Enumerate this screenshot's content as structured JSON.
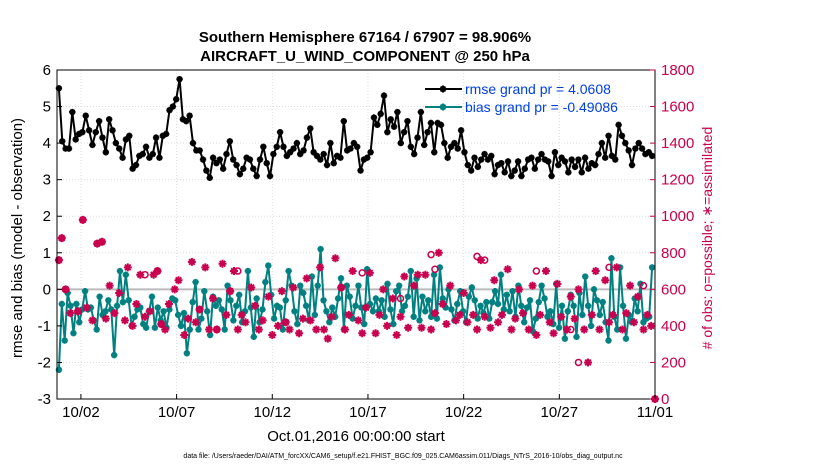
{
  "chart_data": {
    "type": "line",
    "title_line1": "Southern Hemisphere 67164 / 67907 = 98.906%",
    "title_line2": "AIRCRAFT_U_WIND_COMPONENT @ 250 hPa",
    "xlabel": "Oct.01,2016 00:00:00 start",
    "ylabel_left": "rmse and bias (model - observation)",
    "ylabel_right": "# of obs: o=possible; ∗=assimilated",
    "footnote": "data file: /Users/raeder/DAI/ATM_forcXX/CAM6_setup/f.e21.FHIST_BGC.f09_025.CAM6assim.011/Diags_NTrS_2016-10/obs_diag_output.nc",
    "x_ticks": [
      {
        "value": 2,
        "label": "10/02"
      },
      {
        "value": 7,
        "label": "10/07"
      },
      {
        "value": 12,
        "label": "10/12"
      },
      {
        "value": 17,
        "label": "10/17"
      },
      {
        "value": 22,
        "label": "10/22"
      },
      {
        "value": 27,
        "label": "10/27"
      },
      {
        "value": 32,
        "label": "11/01"
      }
    ],
    "xlim": [
      0.75,
      32
    ],
    "ylim_left": [
      -3,
      6
    ],
    "y_ticks_left": [
      "-3",
      "-2",
      "-1",
      "0",
      "1",
      "2",
      "3",
      "4",
      "5",
      "6"
    ],
    "ylim_right": [
      0,
      1800
    ],
    "y_ticks_right": [
      "0",
      "200",
      "400",
      "600",
      "800",
      "1000",
      "1200",
      "1400",
      "1600",
      "1800"
    ],
    "grid": true,
    "legend_position": "top-right",
    "colors": {
      "rmse": "#000000",
      "bias": "#008080",
      "obs": "#c8004e",
      "zero_line": "#bbbbbb"
    },
    "series": [
      {
        "name": "rmse grand pr = 4.0608",
        "axis": "left",
        "marker": "star",
        "values": [
          5.5,
          4.05,
          3.85,
          3.85,
          4.85,
          4.1,
          4.25,
          4.3,
          4.75,
          4.35,
          3.95,
          4.3,
          4.6,
          4.15,
          3.75,
          4.65,
          4.35,
          4.0,
          3.85,
          3.6,
          4.1,
          4.2,
          3.3,
          3.4,
          3.65,
          3.7,
          3.9,
          3.6,
          3.7,
          4.15,
          3.6,
          4.2,
          4.25,
          4.9,
          5.0,
          5.2,
          5.75,
          4.65,
          4.6,
          4.75,
          4.0,
          3.8,
          3.8,
          3.55,
          3.25,
          3.05,
          3.6,
          3.45,
          3.55,
          3.3,
          3.7,
          4.05,
          3.55,
          3.4,
          3.15,
          3.3,
          3.6,
          3.55,
          3.3,
          3.1,
          3.55,
          3.9,
          3.45,
          3.1,
          3.7,
          3.9,
          4.3,
          3.9,
          3.65,
          3.75,
          3.85,
          4.0,
          3.7,
          3.8,
          4.15,
          4.4,
          3.75,
          3.65,
          3.55,
          3.7,
          3.4,
          4.0,
          3.45,
          3.65,
          3.6,
          4.6,
          3.8,
          3.85,
          4.0,
          3.9,
          3.25,
          3.55,
          3.6,
          3.75,
          4.7,
          4.5,
          4.8,
          5.3,
          4.3,
          4.65,
          4.45,
          4.85,
          4.0,
          4.3,
          4.6,
          3.9,
          3.7,
          4.15,
          4.85,
          3.95,
          4.3,
          4.55,
          3.75,
          4.55,
          4.5,
          4.0,
          3.6,
          3.9,
          4.0,
          3.85,
          4.35,
          3.75,
          3.4,
          3.25,
          3.6,
          3.35,
          3.55,
          3.7,
          3.55,
          3.65,
          3.15,
          3.4,
          3.45,
          3.2,
          3.5,
          3.1,
          3.25,
          3.5,
          3.1,
          3.3,
          3.55,
          3.6,
          3.3,
          3.55,
          3.7,
          3.55,
          3.5,
          3.1,
          3.75,
          3.4,
          3.6,
          3.5,
          3.2,
          3.55,
          3.35,
          3.55,
          3.2,
          3.6,
          3.3,
          3.45,
          3.4,
          3.7,
          4.0,
          3.6,
          4.2,
          3.65,
          3.55,
          4.5,
          4.2,
          4.0,
          3.8,
          3.4,
          3.85,
          4.0,
          3.85,
          3.7,
          3.75,
          3.65
        ]
      },
      {
        "name": "bias grand pr = -0.49086",
        "axis": "left",
        "marker": "star",
        "values": [
          -2.2,
          -0.4,
          -1.4,
          -0.1,
          -0.45,
          -1.2,
          -0.4,
          -0.9,
          -0.55,
          -0.05,
          -0.55,
          -0.5,
          -0.85,
          -1.1,
          -0.2,
          -0.7,
          -0.6,
          -0.3,
          -0.55,
          -1.8,
          -0.45,
          0.5,
          -0.35,
          0.4,
          -0.3,
          -1.0,
          -0.75,
          -0.55,
          -0.5,
          -0.95,
          -1.05,
          -0.6,
          -0.2,
          -1.05,
          -0.5,
          -0.85,
          -0.6,
          -1.05,
          -0.55,
          -0.25,
          -0.3,
          -0.7,
          -1.0,
          -0.65,
          -1.75,
          -1.1,
          -0.35,
          0.2,
          -1.1,
          -0.8,
          -0.05,
          -0.6,
          -1.25,
          -0.2,
          -0.45,
          -0.3,
          -0.55,
          -1.1,
          0.1,
          -0.3,
          -0.85,
          -0.45,
          -0.15,
          -0.9,
          -0.6,
          0.5,
          -0.5,
          -1.3,
          -0.25,
          -0.9,
          -0.55,
          0.2,
          0.65,
          -0.15,
          -0.8,
          -0.45,
          -0.5,
          -1.1,
          -0.3,
          0.5,
          0.1,
          -0.6,
          -0.95,
          0.1,
          -0.1,
          -0.45,
          -0.85,
          0.35,
          -0.7,
          0.1,
          1.1,
          -0.3,
          -0.6,
          -0.9,
          -0.5,
          -0.75,
          -0.25,
          0.3,
          -1.1,
          0.1,
          -0.2,
          -0.8,
          -0.45,
          0.1,
          -0.5,
          -0.95,
          0.55,
          -0.4,
          -0.6,
          -0.25,
          -0.6,
          -0.3,
          -0.75,
          0.15,
          -0.55,
          -0.95,
          -0.05,
          0.1,
          -0.6,
          -0.45,
          -0.2,
          0.5,
          -0.75,
          0.3,
          -0.85,
          -0.2,
          -0.6,
          -0.3,
          -0.75,
          0.4,
          -0.8,
          0.6,
          -0.25,
          -0.5,
          0.0,
          -0.55,
          -0.85,
          -0.4,
          -0.05,
          -0.6,
          -0.9,
          -0.2,
          0.05,
          -0.3,
          -0.8,
          -0.45,
          -0.65,
          -0.35,
          -0.8,
          -0.35,
          -0.05,
          -0.4,
          0.4,
          -0.55,
          -0.15,
          -0.6,
          -0.05,
          -0.75,
          0.1,
          -0.45,
          -0.9,
          -0.5,
          -0.3,
          -1.15,
          -0.8,
          -0.35,
          0.1,
          -0.25,
          -0.75,
          -0.6,
          -0.95,
          0.15,
          -1.05,
          -0.45,
          -1.35,
          -0.6,
          -0.15,
          -0.45,
          -1.3,
          -0.1,
          -0.7,
          0.35,
          -0.45,
          -1.0,
          0.0,
          -0.3,
          -0.7,
          -0.35,
          -0.9,
          -1.4,
          0.85,
          -0.75,
          -1.1,
          0.6,
          -0.45,
          -1.35,
          -0.7,
          -0.9,
          -0.25,
          -0.6,
          0.15,
          -0.9,
          -0.8,
          -0.75,
          0.6
        ]
      },
      {
        "name": "# of obs assimilated",
        "axis": "right",
        "marker": "star",
        "x": [
          0.85,
          1.0,
          1.2,
          1.45,
          1.85,
          2.1,
          2.3,
          2.6,
          2.85,
          3.1,
          3.3,
          3.5,
          3.75,
          4.0,
          4.3,
          4.45,
          4.7,
          4.9,
          5.1,
          5.35,
          5.6,
          5.8,
          6.0,
          6.2,
          6.4,
          6.6,
          6.9,
          7.1,
          7.4,
          7.6,
          7.8,
          8.0,
          8.2,
          8.5,
          8.7,
          8.9,
          9.1,
          9.4,
          9.6,
          9.8,
          10.0,
          10.2,
          10.4,
          10.6,
          10.9,
          11.1,
          11.3,
          11.5,
          11.8,
          12.0,
          12.3,
          12.5,
          12.7,
          12.9,
          13.1,
          13.4,
          13.6,
          13.8,
          14.0,
          14.3,
          14.5,
          14.7,
          14.9,
          15.1,
          15.3,
          15.6,
          15.8,
          16.0,
          16.2,
          16.5,
          16.7,
          16.9,
          17.1,
          17.4,
          17.6,
          17.8,
          18.0,
          18.3,
          18.5,
          18.7,
          18.9,
          19.1,
          19.4,
          19.6,
          19.8,
          20.0,
          20.3,
          20.5,
          20.7,
          20.9,
          21.1,
          21.3,
          21.6,
          21.8,
          22.0,
          22.2,
          22.5,
          22.7,
          22.9,
          23.1,
          23.4,
          23.6,
          23.8,
          24.0,
          24.3,
          24.5,
          24.7,
          24.9,
          25.1,
          25.4,
          25.6,
          25.8,
          26.0,
          26.3,
          26.5,
          26.7,
          26.9,
          27.1,
          27.4,
          27.6,
          27.8,
          28.0,
          28.3,
          28.5,
          28.7,
          28.9,
          29.1,
          29.4,
          29.6,
          29.8,
          30.0,
          30.3,
          30.5,
          30.7,
          30.9,
          31.1,
          31.4,
          31.6,
          31.8,
          32.0
        ],
        "values": [
          760,
          880,
          600,
          470,
          480,
          980,
          500,
          430,
          850,
          860,
          440,
          620,
          470,
          580,
          430,
          720,
          400,
          520,
          680,
          450,
          480,
          680,
          700,
          410,
          380,
          520,
          600,
          650,
          350,
          440,
          750,
          420,
          490,
          720,
          380,
          550,
          380,
          740,
          460,
          590,
          700,
          380,
          460,
          420,
          610,
          510,
          380,
          430,
          560,
          350,
          400,
          590,
          420,
          380,
          610,
          360,
          440,
          660,
          430,
          380,
          720,
          380,
          330,
          450,
          770,
          610,
          380,
          460,
          700,
          430,
          360,
          500,
          690,
          360,
          460,
          600,
          400,
          550,
          350,
          450,
          670,
          390,
          620,
          680,
          390,
          680,
          380,
          470,
          800,
          520,
          410,
          620,
          430,
          460,
          580,
          420,
          460,
          380,
          760,
          450,
          390,
          650,
          420,
          460,
          710,
          380,
          440,
          600,
          470,
          380,
          620,
          350,
          460,
          700,
          420,
          360,
          630,
          450,
          380,
          560,
          440,
          600,
          380,
          200,
          460,
          700,
          380,
          650,
          420,
          460,
          720,
          380,
          470,
          620,
          420,
          560,
          380,
          460,
          400,
          0
        ]
      },
      {
        "name": "# of obs possible",
        "axis": "right",
        "marker": "circle",
        "x": [
          0.85,
          1.0,
          1.2,
          1.85,
          2.1,
          2.85,
          3.1,
          5.35,
          6.0,
          6.2,
          8.2,
          9.1,
          9.8,
          10.2,
          12.7,
          15.6,
          16.7,
          18.7,
          20.3,
          20.5,
          22.7,
          23.1,
          25.8,
          27.6,
          28.0,
          29.6,
          31.4,
          32.0
        ],
        "values": [
          760,
          880,
          600,
          480,
          980,
          850,
          860,
          680,
          700,
          410,
          490,
          380,
          590,
          700,
          420,
          610,
          690,
          550,
          790,
          710,
          780,
          760,
          700,
          380,
          200,
          720,
          620,
          0
        ]
      }
    ]
  }
}
